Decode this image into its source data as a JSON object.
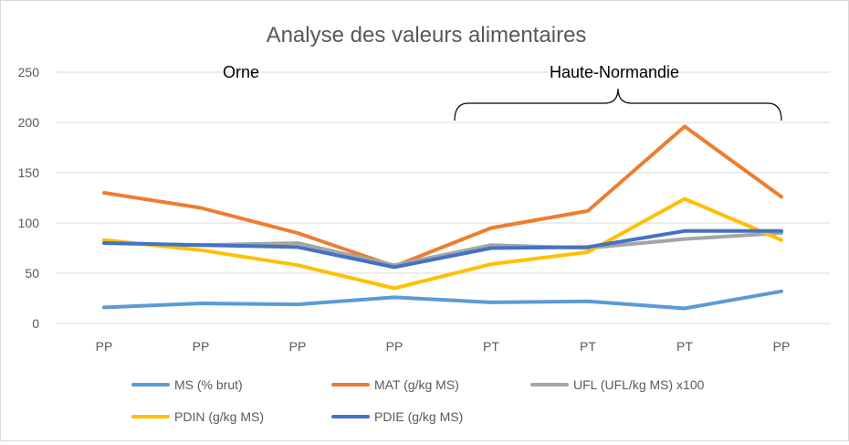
{
  "chart_data": {
    "type": "line",
    "title": "Analyse des valeurs alimentaires",
    "xlabel": "",
    "ylabel": "",
    "categories": [
      "PP",
      "PP",
      "PP",
      "PP",
      "PT",
      "PT",
      "PT",
      "PP"
    ],
    "ylim": [
      0,
      250
    ],
    "yticks": [
      0,
      50,
      100,
      150,
      200,
      250
    ],
    "grid": true,
    "legend_position": "bottom",
    "series": [
      {
        "name": "MS (% brut)",
        "color": "#5B9BD5",
        "values": [
          16,
          20,
          19,
          26,
          21,
          22,
          15,
          32
        ]
      },
      {
        "name": "MAT (g/kg MS)",
        "color": "#ED7D31",
        "values": [
          130,
          115,
          90,
          57,
          95,
          112,
          196,
          126
        ]
      },
      {
        "name": "UFL (UFL/kg MS) x100",
        "color": "#A5A5A5",
        "values": [
          80,
          78,
          80,
          58,
          78,
          75,
          84,
          90
        ]
      },
      {
        "name": "PDIN (g/kg MS)",
        "color": "#FFC000",
        "values": [
          83,
          73,
          58,
          35,
          59,
          71,
          124,
          83
        ]
      },
      {
        "name": "PDIE (g/kg MS)",
        "color": "#4472C4",
        "values": [
          80,
          78,
          76,
          56,
          75,
          76,
          92,
          92
        ]
      }
    ],
    "annotations": [
      {
        "text": "Orne"
      },
      {
        "text": "Haute-Normandie"
      }
    ]
  }
}
